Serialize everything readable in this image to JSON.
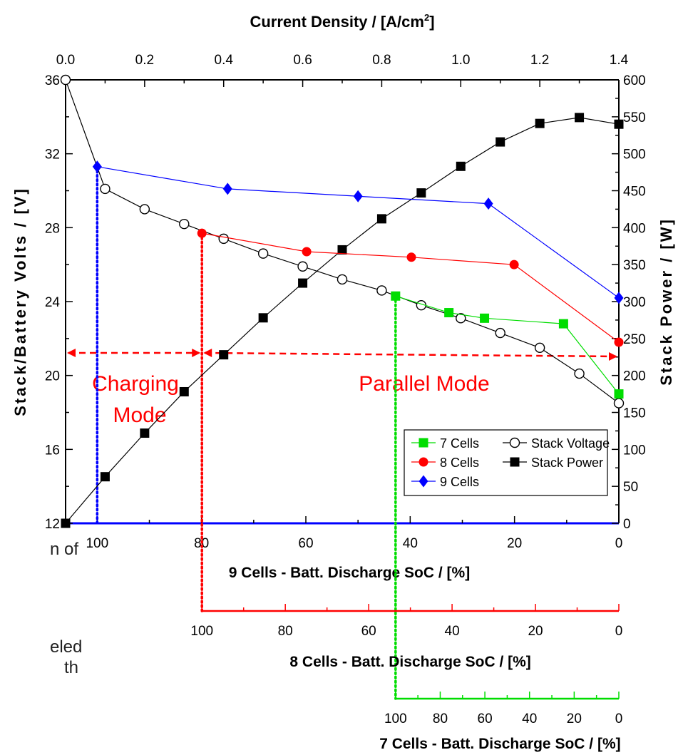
{
  "chart_data": {
    "type": "line",
    "top_axis": {
      "label": "Current Density / [A/cm",
      "label_sup": "2",
      "label_end": "]",
      "range": [
        0.0,
        1.4
      ],
      "ticks": [
        "0.0",
        "0.2",
        "0.4",
        "0.6",
        "0.8",
        "1.0",
        "1.2",
        "1.4"
      ]
    },
    "left_axis": {
      "label": "Stack/Battery Volts / [V]",
      "range": [
        12,
        36
      ],
      "ticks": [
        "12",
        "16",
        "20",
        "24",
        "28",
        "32",
        "36"
      ]
    },
    "right_axis": {
      "label": "Stack Power / [W]",
      "range": [
        0,
        600
      ],
      "ticks": [
        "0",
        "50",
        "100",
        "150",
        "200",
        "250",
        "300",
        "350",
        "400",
        "450",
        "500",
        "550",
        "600"
      ]
    },
    "soc_axes": [
      {
        "label": "9 Cells - Batt. Discharge SoC / [%]",
        "color": "#0000ff",
        "ticks": [
          "100",
          "80",
          "60",
          "40",
          "20",
          "0"
        ]
      },
      {
        "label": "8 Cells - Batt. Discharge SoC / [%]",
        "color": "#ff0000",
        "ticks": [
          "100",
          "80",
          "60",
          "40",
          "20",
          "0"
        ]
      },
      {
        "label": "7 Cells - Batt. Discharge SoC / [%]",
        "color": "#00dd00",
        "ticks": [
          "100",
          "80",
          "60",
          "40",
          "20",
          "0"
        ]
      }
    ],
    "series": [
      {
        "name": "Stack Voltage",
        "axis": "left",
        "marker": "open-circle",
        "color": "#000000",
        "x": [
          0.0,
          0.1,
          0.2,
          0.3,
          0.4,
          0.5,
          0.6,
          0.7,
          0.8,
          0.9,
          1.0,
          1.1,
          1.2,
          1.3,
          1.4
        ],
        "y": [
          36.0,
          30.1,
          29.0,
          28.2,
          27.4,
          26.6,
          25.9,
          25.2,
          24.6,
          23.8,
          23.1,
          22.3,
          21.5,
          20.1,
          18.5
        ]
      },
      {
        "name": "Stack Power",
        "axis": "right",
        "marker": "square",
        "color": "#000000",
        "x": [
          0.0,
          0.1,
          0.2,
          0.3,
          0.4,
          0.5,
          0.6,
          0.7,
          0.8,
          0.9,
          1.0,
          1.1,
          1.2,
          1.3,
          1.4
        ],
        "y": [
          0,
          63,
          122,
          178,
          228,
          278,
          325,
          370,
          412,
          447,
          483,
          516,
          541,
          549,
          540
        ]
      },
      {
        "name": "9 Cells",
        "axis": "left",
        "marker": "diamond",
        "color": "#0000ff",
        "x": [
          0.08,
          0.41,
          0.74,
          1.07,
          1.4
        ],
        "y": [
          31.3,
          30.1,
          29.7,
          29.3,
          24.2
        ]
      },
      {
        "name": "8 Cells",
        "axis": "left",
        "marker": "filled-circle",
        "color": "#ff0000",
        "x": [
          0.345,
          0.61,
          0.875,
          1.135,
          1.4
        ],
        "y": [
          27.7,
          26.7,
          26.4,
          26.0,
          21.8
        ]
      },
      {
        "name": "7 Cells",
        "axis": "left",
        "marker": "filled-square",
        "color": "#00dd00",
        "x": [
          0.835,
          0.97,
          1.06,
          1.26,
          1.4
        ],
        "y": [
          24.3,
          23.4,
          23.1,
          22.8,
          19.0
        ]
      }
    ],
    "mode_labels": [
      "Charging",
      "Mode",
      "Parallel Mode"
    ],
    "legend": {
      "position": "lower-right",
      "entries": [
        "7 Cells",
        "Stack Voltage",
        "8 Cells",
        "Stack Power",
        "9 Cells"
      ]
    },
    "fragments": [
      "n of",
      "eled",
      "th"
    ]
  }
}
